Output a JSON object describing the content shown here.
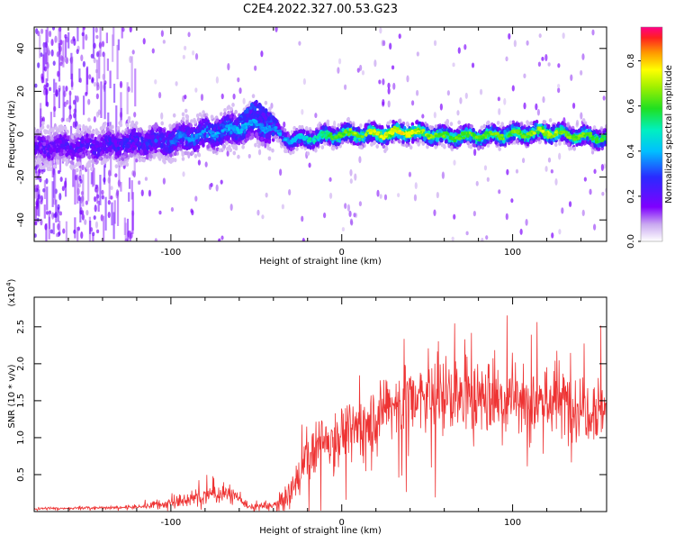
{
  "figure": {
    "title": "C2E4.2022.327.00.53.G23"
  },
  "chart_data": [
    {
      "type": "heatmap",
      "xlabel": "Height of straight line (km)",
      "ylabel": "Frequency (Hz)",
      "xlim": [
        -180,
        155
      ],
      "ylim": [
        -50,
        50
      ],
      "x_ticks": [
        -100,
        0,
        100
      ],
      "x_tick_labels": [
        "-100",
        "0",
        "100"
      ],
      "y_ticks": [
        -40,
        -20,
        0,
        20,
        40
      ],
      "y_tick_labels": [
        "-40",
        "-20",
        "0",
        "20",
        "40"
      ],
      "colorbar": {
        "label": "Normalized spectral amplitude",
        "range": [
          0,
          0.95
        ],
        "ticks": [
          0.0,
          0.2,
          0.4,
          0.6,
          0.8
        ],
        "tick_labels": [
          "0.0",
          "0.2",
          "0.4",
          "0.6",
          "0.8"
        ]
      },
      "ridge": {
        "x": [
          -180,
          -150,
          -120,
          -100,
          -80,
          -60,
          -50,
          -40,
          -30,
          -20,
          0,
          20,
          40,
          60,
          80,
          100,
          120,
          140,
          155
        ],
        "frequency": [
          -6,
          -6,
          -4,
          -3,
          0,
          3,
          5,
          2,
          -3,
          -2,
          0,
          0,
          1,
          -1,
          -1,
          0,
          1,
          -1,
          -2
        ],
        "amplitude": [
          0.25,
          0.28,
          0.33,
          0.38,
          0.42,
          0.45,
          0.44,
          0.4,
          0.45,
          0.55,
          0.72,
          0.82,
          0.85,
          0.7,
          0.7,
          0.72,
          0.8,
          0.72,
          0.65
        ]
      },
      "grid": false
    },
    {
      "type": "line",
      "xlabel": "Height of straight line (km)",
      "ylabel": "SNR (10 * v/v)",
      "y_multiplier": "(x10",
      "y_multiplier_exp": "4",
      "y_multiplier_close": ")",
      "xlim": [
        -180,
        155
      ],
      "ylim": [
        0,
        2.9
      ],
      "x_ticks": [
        -100,
        0,
        100
      ],
      "x_tick_labels": [
        "-100",
        "0",
        "100"
      ],
      "y_ticks": [
        0.5,
        1.0,
        1.5,
        2.0,
        2.5
      ],
      "y_tick_labels": [
        "0.5",
        "1.0",
        "1.5",
        "2.0",
        "2.5"
      ],
      "series": [
        {
          "color": "#ee3333",
          "x": [
            -180,
            -140,
            -120,
            -105,
            -100,
            -90,
            -80,
            -70,
            -60,
            -55,
            -40,
            -30,
            -25,
            -20,
            -10,
            0,
            10,
            20,
            30,
            40,
            60,
            80,
            100,
            120,
            140,
            155
          ],
          "values": [
            0.04,
            0.05,
            0.06,
            0.1,
            0.12,
            0.16,
            0.22,
            0.25,
            0.2,
            0.06,
            0.08,
            0.2,
            0.5,
            0.8,
            0.95,
            1.05,
            1.15,
            1.3,
            1.45,
            1.5,
            1.55,
            1.55,
            1.5,
            1.5,
            1.45,
            1.4
          ],
          "noise": [
            0.02,
            0.02,
            0.03,
            0.08,
            0.1,
            0.12,
            0.14,
            0.14,
            0.12,
            0.04,
            0.08,
            0.25,
            0.35,
            0.4,
            0.4,
            0.42,
            0.45,
            0.5,
            0.55,
            0.6,
            0.6,
            0.6,
            0.6,
            0.62,
            0.6,
            0.55
          ]
        }
      ],
      "grid": false
    }
  ]
}
